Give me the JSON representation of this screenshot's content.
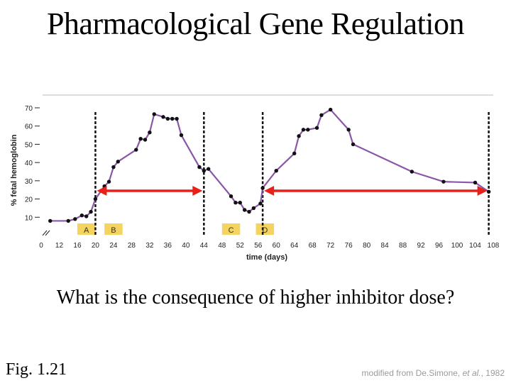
{
  "slide": {
    "title": "Pharmacological Gene Regulation",
    "question": "What is the consequence of higher inhibitor dose?",
    "figure_label": "Fig. 1.21",
    "credit_prefix": "modified from De.Simone, ",
    "credit_etal": "et al.",
    "credit_suffix": ", 1982"
  },
  "chart_data": {
    "type": "line",
    "xlabel": "time (days)",
    "ylabel": "% fetal hemoglobin",
    "xlim": [
      8,
      108
    ],
    "ylim": [
      0,
      70
    ],
    "xticks": [
      12,
      16,
      20,
      24,
      28,
      32,
      36,
      40,
      44,
      48,
      52,
      56,
      60,
      64,
      68,
      72,
      76,
      80,
      84,
      88,
      92,
      96,
      100,
      104,
      108
    ],
    "x_origin_label": "0",
    "yticks": [
      10,
      20,
      30,
      40,
      50,
      60,
      70
    ],
    "series_color": "#8a56a8",
    "series": [
      {
        "x": [
          10,
          14,
          15.5,
          17,
          18,
          19,
          20,
          22,
          23,
          24,
          25,
          29,
          30,
          31,
          32,
          33,
          35,
          36,
          37,
          38,
          39,
          43,
          44,
          45,
          50,
          51,
          52,
          53,
          54,
          55,
          56.5,
          57,
          60,
          64,
          65,
          66,
          67,
          69,
          70,
          72,
          76,
          77,
          90,
          97,
          104,
          107
        ],
        "y": [
          8,
          8,
          9,
          11,
          10.5,
          13,
          20,
          27,
          29.5,
          37.5,
          40.5,
          47,
          53,
          52.5,
          56.5,
          66.5,
          65,
          64,
          64,
          64,
          55,
          37.5,
          35.5,
          36.5,
          21.5,
          18,
          18,
          14,
          13,
          15,
          17.5,
          26,
          35.5,
          45,
          54.5,
          58,
          58,
          59,
          66,
          69,
          58,
          50,
          35,
          29.5,
          29,
          24
        ]
      }
    ],
    "dashed_lines_x": [
      20,
      44,
      57,
      107
    ],
    "arrows": [
      [
        20,
        44,
        24.5
      ],
      [
        57,
        107,
        24.5
      ]
    ],
    "markers": [
      {
        "label": "A",
        "x0": 16,
        "x1": 20
      },
      {
        "label": "B",
        "x0": 22,
        "x1": 26
      },
      {
        "label": "C",
        "x0": 48,
        "x1": 52
      },
      {
        "label": "D",
        "x0": 55.5,
        "x1": 59.5
      }
    ],
    "marker_color": "#f4d35e",
    "arrow_color": "#e8201a"
  }
}
